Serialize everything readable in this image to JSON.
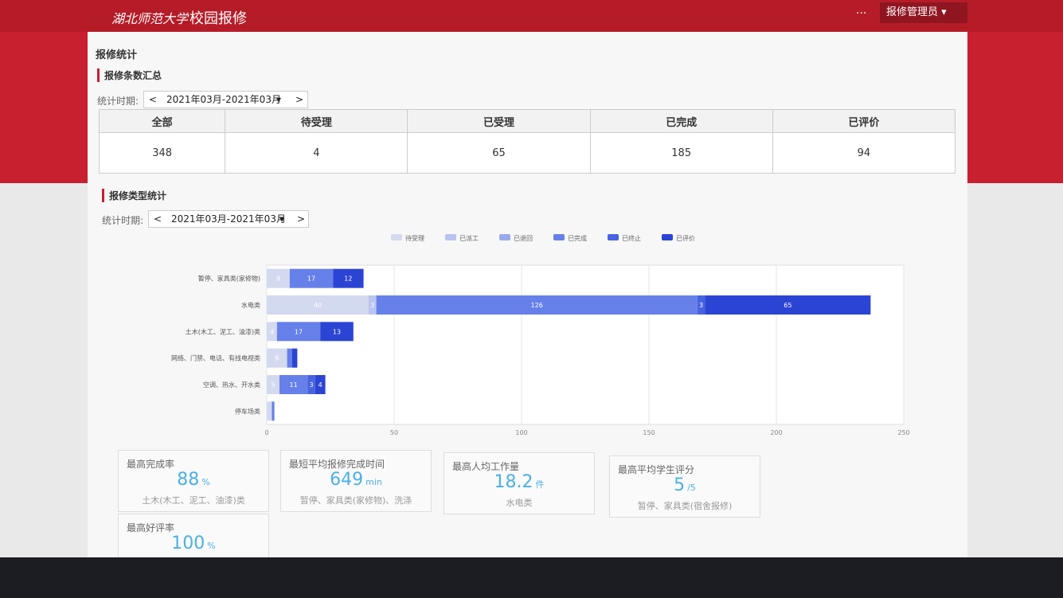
{
  "header": {
    "logo": "湖北师范大学",
    "app_title": "校园报修",
    "more": "···",
    "user": "报修管理员"
  },
  "page_title": "报修统计",
  "summary": {
    "section_title": "报修条数汇总",
    "period_label": "统计时期:",
    "prev": "<",
    "period": "2021年03月-2021年03月",
    "next": ">",
    "headers": [
      "全部",
      "待受理",
      "已受理",
      "已完成",
      "已评价"
    ],
    "values": [
      348,
      4,
      65,
      185,
      94
    ]
  },
  "type_section": {
    "section_title": "报修类型统计",
    "period_label": "统计时期:",
    "prev": "<",
    "period": "2021年03月-2021年03月",
    "next": ">"
  },
  "chart_data": {
    "type": "stacked-bar-horizontal",
    "categories": [
      "暂停、家具类(家修物)",
      "水电类",
      "土木(木工、泥工、油漆)类",
      "网络、门禁、电话、有线电视类",
      "空调、热水、开水类",
      "停车场类"
    ],
    "series": [
      {
        "name": "待受理",
        "color": "#d3d9ef",
        "values": [
          9,
          40,
          4,
          8,
          5,
          2
        ]
      },
      {
        "name": "已派工",
        "color": "#b9c4f0",
        "values": [
          null,
          3,
          null,
          null,
          null,
          null
        ]
      },
      {
        "name": "已退回",
        "color": "#9aa9ee",
        "values": [
          null,
          null,
          null,
          null,
          null,
          null
        ]
      },
      {
        "name": "已完成",
        "color": "#6680ea",
        "values": [
          17,
          126,
          17,
          2,
          11,
          1
        ]
      },
      {
        "name": "已终止",
        "color": "#4863e0",
        "values": [
          null,
          3,
          null,
          null,
          3,
          null
        ]
      },
      {
        "name": "已评价",
        "color": "#2c44d4",
        "values": [
          12,
          65,
          13,
          2,
          4,
          null
        ]
      }
    ],
    "xlim": [
      0,
      250
    ],
    "xticks": [
      0,
      50,
      100,
      150,
      200,
      250
    ],
    "grid": true
  },
  "cards": [
    {
      "title": "最高完成率",
      "value": 88,
      "unit": "%",
      "note": "土木(木工、泥工、油漆)类"
    },
    {
      "title": "最短平均报修完成时间",
      "value": 649,
      "unit": "min",
      "note": "暂停、家具类(家修物)、洗涤"
    },
    {
      "title": "最高人均工作量",
      "value": 18.2,
      "unit": "件",
      "note": "水电类"
    },
    {
      "title": "最高平均学生评分",
      "value": 5,
      "unit": "/5",
      "note": "暂停、家具类(宿舍报修)"
    },
    {
      "title": "最高好评率",
      "value": 100,
      "unit": "%"
    }
  ]
}
